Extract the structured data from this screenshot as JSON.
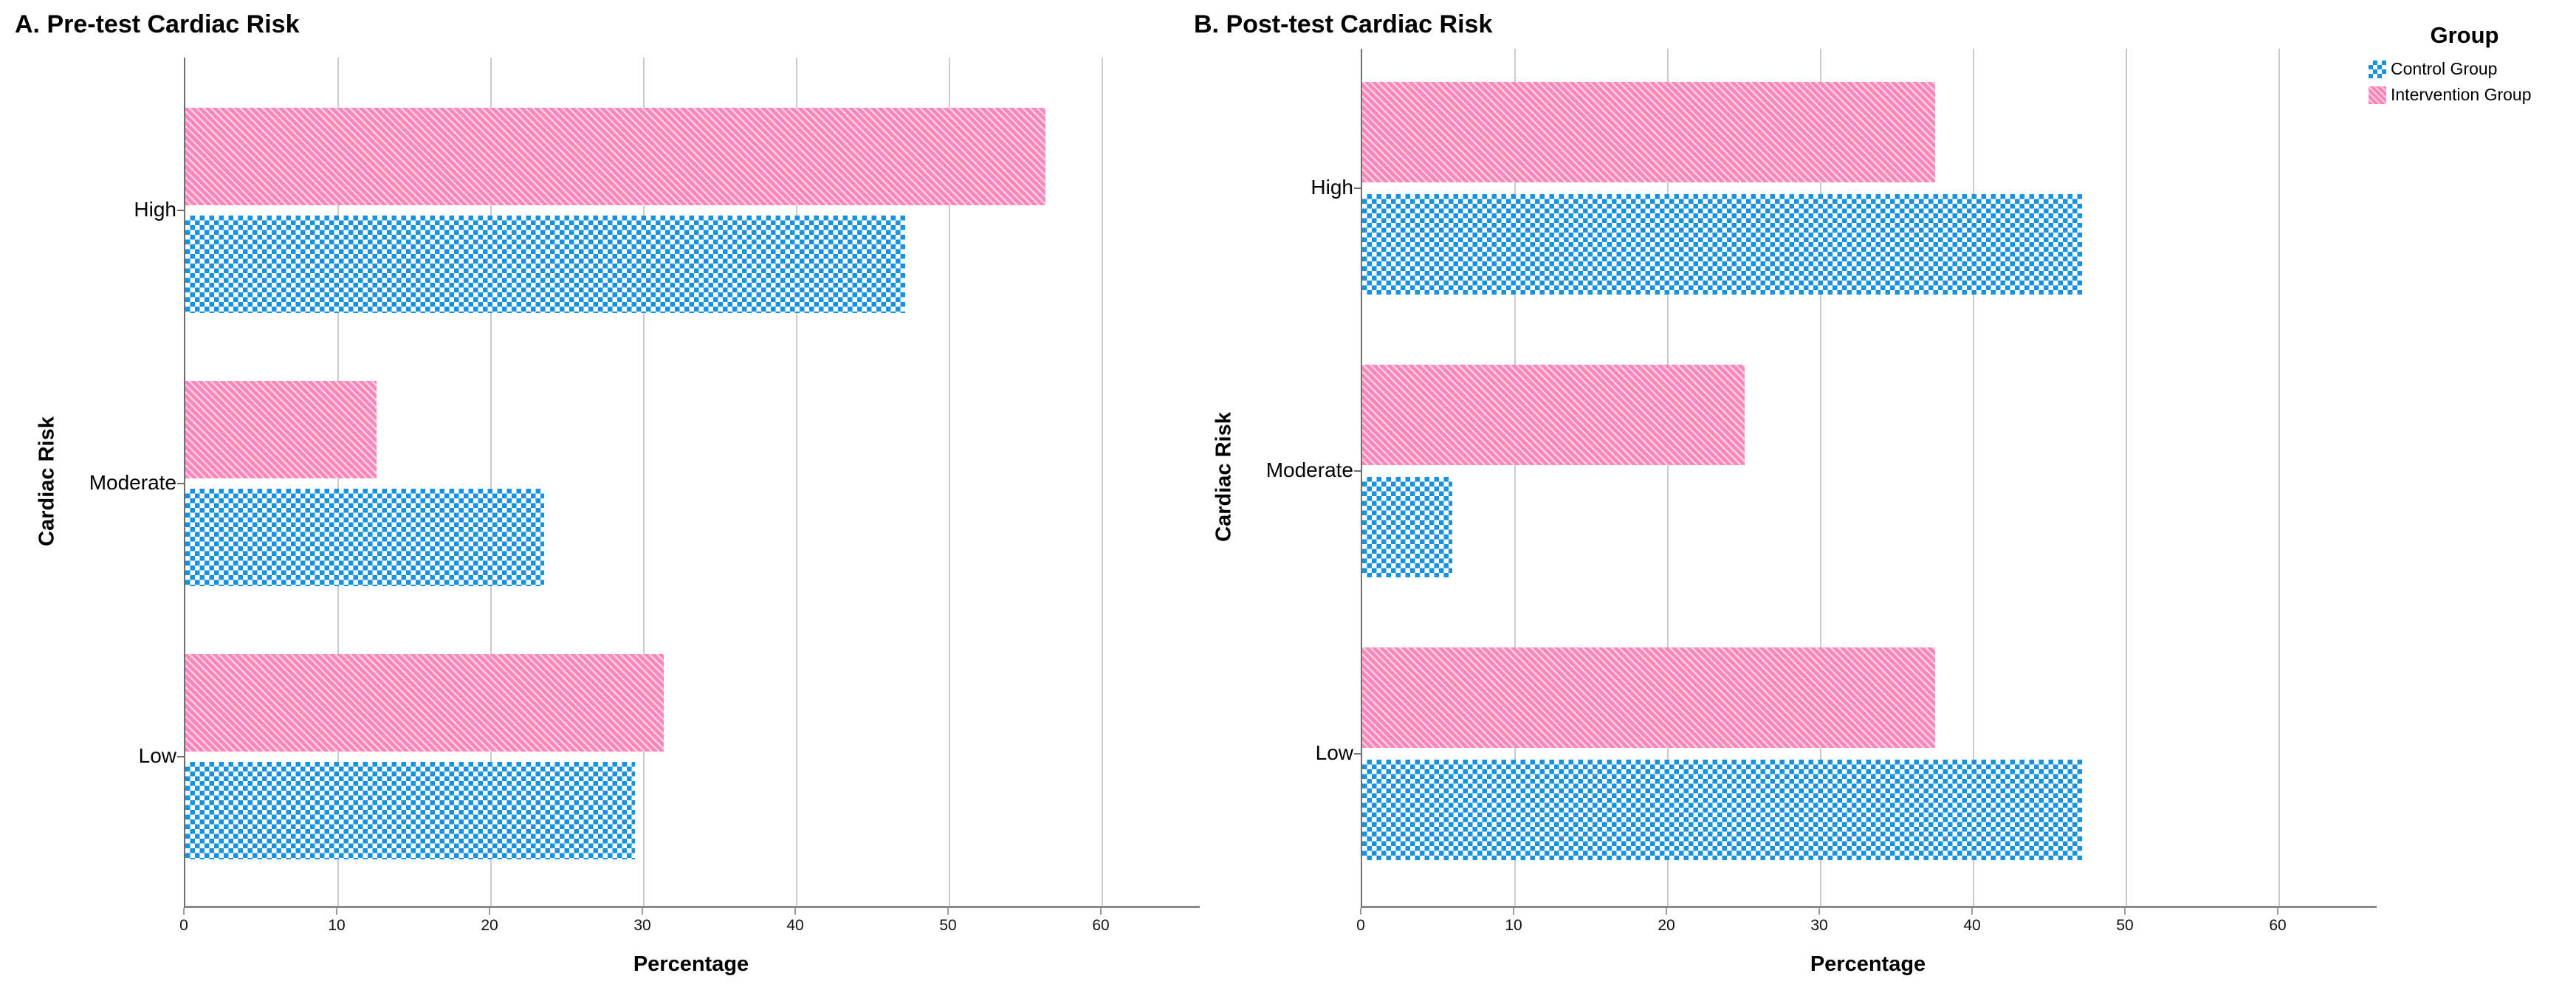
{
  "figure": {
    "background": "#ffffff"
  },
  "colors": {
    "control_blue": "#1792e0",
    "intervention_pink": "#fa86ba",
    "intervention_pink_light": "#fdd3e4",
    "gridline": "#cbcbcb",
    "axis_line": "#6e6e6e"
  },
  "legend": {
    "title": "Group",
    "items": [
      {
        "label": "Control Group",
        "pattern": "blue-checkerboard"
      },
      {
        "label": "Intervention Group",
        "pattern": "pink-diagonal-stripes"
      }
    ]
  },
  "chart_data": [
    {
      "type": "bar",
      "orientation": "horizontal",
      "title": "A. Pre-test Cardiac Risk",
      "xlabel": "Percentage",
      "ylabel": "Cardiac Risk",
      "categories": [
        "High",
        "Moderate",
        "Low"
      ],
      "xlim": [
        0,
        66
      ],
      "xticks": [
        0,
        10,
        20,
        30,
        40,
        50,
        60
      ],
      "grid": true,
      "legend_position": "outside-top-right",
      "series": [
        {
          "name": "Control Group",
          "values": [
            47.1,
            23.5,
            29.4
          ]
        },
        {
          "name": "Intervention Group",
          "values": [
            56.3,
            12.5,
            31.3
          ]
        }
      ]
    },
    {
      "type": "bar",
      "orientation": "horizontal",
      "title": "B. Post-test Cardiac Risk",
      "xlabel": "Percentage",
      "ylabel": "Cardiac Risk",
      "categories": [
        "High",
        "Moderate",
        "Low"
      ],
      "xlim": [
        0,
        66
      ],
      "xticks": [
        0,
        10,
        20,
        30,
        40,
        50,
        60
      ],
      "grid": true,
      "legend_position": "outside-top-right",
      "series": [
        {
          "name": "Control Group",
          "values": [
            47.1,
            5.9,
            47.1
          ]
        },
        {
          "name": "Intervention Group",
          "values": [
            37.5,
            25.0,
            37.5
          ]
        }
      ]
    }
  ]
}
